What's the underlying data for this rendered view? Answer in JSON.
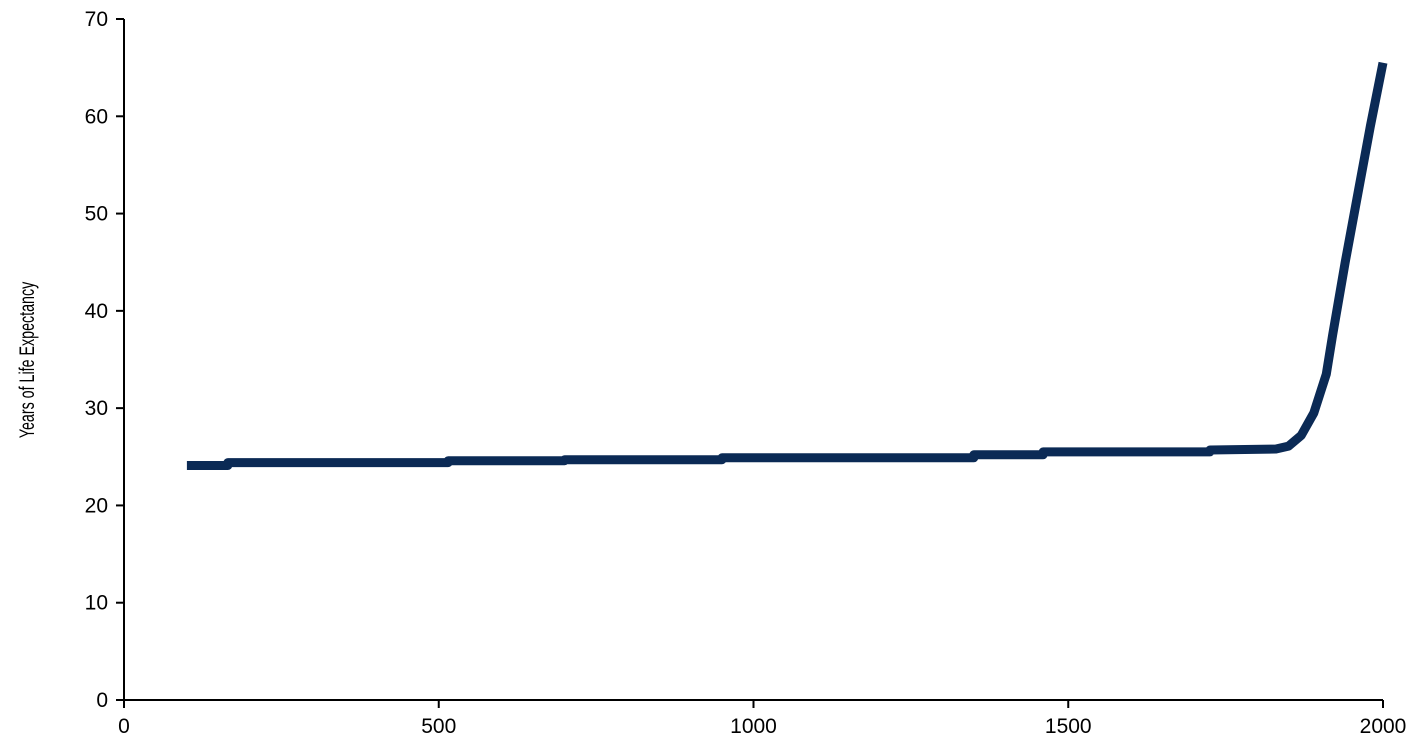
{
  "chart_data": {
    "type": "line",
    "title": "",
    "xlabel": "",
    "ylabel": "Years of Life Expectancy",
    "xlim": [
      0,
      2000
    ],
    "ylim": [
      0,
      70
    ],
    "grid": false,
    "legend": "none",
    "line_color": "#0b2a55",
    "x_ticks": [
      0,
      500,
      1000,
      1500,
      2000
    ],
    "y_ticks": [
      0,
      10,
      20,
      30,
      40,
      50,
      60,
      70
    ],
    "x_tick_labels": [
      "0",
      "500",
      "1000",
      "1500",
      "2000"
    ],
    "y_tick_labels": [
      "0",
      "10",
      "20",
      "30",
      "40",
      "50",
      "60",
      "70"
    ],
    "series": [
      {
        "x": [
          100,
          165,
          165,
          515,
          515,
          700,
          700,
          950,
          950,
          1350,
          1350,
          1460,
          1460,
          1725,
          1725,
          1830,
          1850,
          1870,
          1890,
          1910,
          1920,
          1940,
          1960,
          1980,
          2000
        ],
        "y": [
          24.1,
          24.1,
          24.4,
          24.4,
          24.6,
          24.6,
          24.7,
          24.7,
          24.9,
          24.9,
          25.2,
          25.2,
          25.5,
          25.5,
          25.7,
          25.8,
          26.1,
          27.2,
          29.5,
          33.5,
          37.5,
          45,
          52,
          59,
          65.5
        ]
      }
    ]
  }
}
